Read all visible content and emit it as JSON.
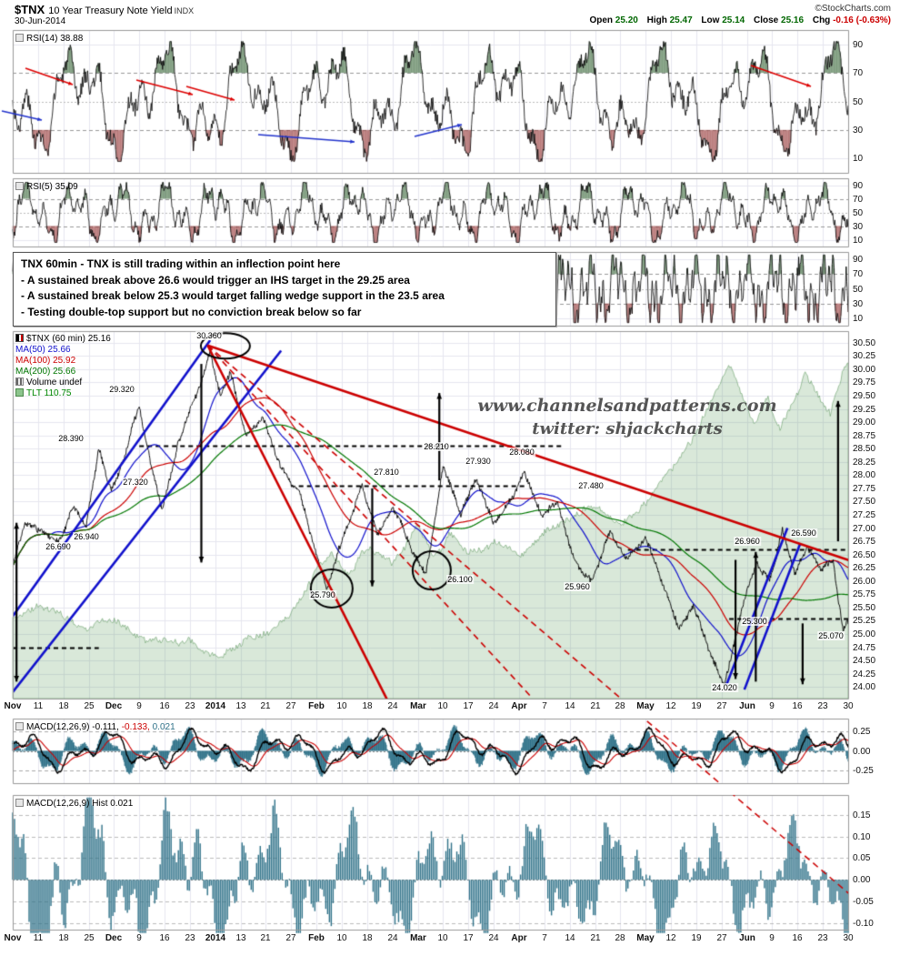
{
  "header": {
    "symbol": "$TNX",
    "title": "10 Year Treasury Note Yield",
    "index_tag": "INDX",
    "source": "©StockCharts.com",
    "date": "30-Jun-2014",
    "open_label": "Open",
    "open": "25.20",
    "high_label": "High",
    "high": "25.47",
    "low_label": "Low",
    "low": "25.14",
    "close_label": "Close",
    "close": "25.16",
    "chg_label": "Chg",
    "chg": "-0.16 (-0.63%)"
  },
  "annotation_box": {
    "title": "TNX 60min - TNX is still trading within an inflection point here",
    "line1": "- A sustained break above 26.6 would trigger an IHS target in the 29.25 area",
    "line2": "- A sustained break below 25.3 would target falling wedge support in the 23.5 area",
    "line3": "- Testing double-top support but no conviction break below so far"
  },
  "watermark": {
    "line1": "www.channelsandpatterns.com",
    "line2": "twitter: shjackcharts"
  },
  "panels": {
    "rsi14": {
      "legend": "RSI(14) 38.88",
      "ticks": [
        "90",
        "70",
        "50",
        "30",
        "10"
      ]
    },
    "rsi5": {
      "legend": "RSI(5) 35.09",
      "ticks": [
        "90",
        "70",
        "50",
        "30",
        "10"
      ]
    },
    "stoch": {
      "ticks": [
        "90",
        "70",
        "50",
        "30",
        "10"
      ]
    },
    "main": {
      "legend_price": "$TNX (60 min) 25.16",
      "legend_ma50": "MA(50) 25.66",
      "legend_ma100": "MA(100) 25.92",
      "legend_ma200": "MA(200) 25.66",
      "legend_volume": "Volume undef",
      "legend_tlt": "TLT 110.75",
      "ticks": [
        "30.50",
        "30.25",
        "30.00",
        "29.75",
        "29.50",
        "29.25",
        "29.00",
        "28.75",
        "28.50",
        "28.25",
        "28.00",
        "27.75",
        "27.50",
        "27.25",
        "27.00",
        "26.75",
        "26.50",
        "26.25",
        "26.00",
        "25.75",
        "25.50",
        "25.25",
        "25.00",
        "24.75",
        "24.50",
        "24.25",
        "24.00"
      ]
    },
    "macd": {
      "legend_name": "MACD(12,26,9)",
      "macd_value": "-0.111,",
      "signal_value": "-0.133,",
      "hist_value": "0.021",
      "ticks": [
        "0.25",
        "0.00",
        "-0.25"
      ]
    },
    "hist": {
      "legend": "MACD(12,26,9) Hist 0.021",
      "ticks": [
        "0.15",
        "0.10",
        "0.05",
        "0.00",
        "-0.05",
        "-0.10"
      ]
    }
  },
  "xaxis": {
    "labels": [
      "Nov",
      "11",
      "18",
      "25",
      "Dec",
      "9",
      "16",
      "23",
      "2014",
      "13",
      "21",
      "27",
      "Feb",
      "10",
      "18",
      "24",
      "Mar",
      "10",
      "17",
      "24",
      "Apr",
      "7",
      "14",
      "21",
      "28",
      "May",
      "12",
      "19",
      "27",
      "Jun",
      "9",
      "16",
      "23",
      "30"
    ]
  },
  "colors": {
    "ma50": "#1111cc",
    "ma100": "#cc0000",
    "ma200": "#007700",
    "tlt_fill": "rgba(80,150,80,0.22)",
    "tlt_line": "rgba(60,130,60,0.45)",
    "macd_hist": "#2e7188",
    "trend_red": "#cc0000",
    "trend_blue": "#1111cc",
    "annotation_black": "#000000"
  },
  "chart_data": {
    "type": "line",
    "title": "$TNX 10 Year Treasury Note Yield INDX, 60-minute bars, Nov 2013 - Jun 2014",
    "x_ticks": [
      "Nov",
      "11",
      "18",
      "25",
      "Dec",
      "9",
      "16",
      "23",
      "2014",
      "13",
      "21",
      "27",
      "Feb",
      "10",
      "18",
      "24",
      "Mar",
      "10",
      "17",
      "24",
      "Apr",
      "7",
      "14",
      "21",
      "28",
      "May",
      "12",
      "19",
      "27",
      "Jun",
      "9",
      "16",
      "23",
      "30"
    ],
    "price": {
      "ylim": [
        24.0,
        30.5
      ],
      "last": 25.16,
      "anchors": [
        [
          0,
          26.3
        ],
        [
          0.5,
          27.1
        ],
        [
          1.1,
          26.9
        ],
        [
          1.8,
          26.69
        ],
        [
          2.4,
          27.35
        ],
        [
          2.9,
          26.94
        ],
        [
          3.4,
          28.39
        ],
        [
          3.9,
          27.75
        ],
        [
          4.4,
          28.25
        ],
        [
          5.0,
          29.32
        ],
        [
          5.6,
          27.9
        ],
        [
          5.9,
          27.32
        ],
        [
          6.5,
          28.55
        ],
        [
          7.0,
          29.2
        ],
        [
          7.4,
          29.7
        ],
        [
          7.8,
          30.36
        ],
        [
          8.2,
          29.55
        ],
        [
          8.6,
          29.95
        ],
        [
          9.2,
          28.75
        ],
        [
          9.9,
          29.05
        ],
        [
          10.6,
          28.15
        ],
        [
          11.3,
          27.65
        ],
        [
          12.0,
          26.45
        ],
        [
          12.4,
          25.79
        ],
        [
          13.1,
          26.85
        ],
        [
          13.8,
          27.81
        ],
        [
          14.4,
          26.95
        ],
        [
          15.0,
          27.45
        ],
        [
          15.7,
          26.65
        ],
        [
          16.3,
          26.1
        ],
        [
          17.0,
          28.21
        ],
        [
          17.7,
          27.25
        ],
        [
          18.3,
          27.93
        ],
        [
          19.0,
          27.1
        ],
        [
          19.7,
          27.55
        ],
        [
          20.2,
          28.08
        ],
        [
          20.9,
          27.2
        ],
        [
          21.5,
          27.48
        ],
        [
          22.2,
          26.35
        ],
        [
          22.9,
          25.96
        ],
        [
          23.6,
          26.95
        ],
        [
          24.3,
          26.35
        ],
        [
          25.0,
          26.85
        ],
        [
          25.7,
          25.9
        ],
        [
          26.3,
          25.05
        ],
        [
          26.9,
          25.55
        ],
        [
          27.5,
          24.65
        ],
        [
          28.1,
          24.02
        ],
        [
          28.8,
          25.45
        ],
        [
          29.4,
          26.35
        ],
        [
          29.9,
          25.95
        ],
        [
          30.4,
          26.96
        ],
        [
          30.9,
          26.15
        ],
        [
          31.4,
          26.59
        ],
        [
          31.9,
          26.2
        ],
        [
          32.4,
          26.4
        ],
        [
          32.8,
          25.07
        ],
        [
          33,
          25.16
        ]
      ],
      "pivot_labels": [
        {
          "text": "30.360",
          "t": 7.75,
          "v": 30.64
        },
        {
          "text": "29.320",
          "t": 4.3,
          "v": 29.62
        },
        {
          "text": "28.390",
          "t": 2.3,
          "v": 28.7
        },
        {
          "text": "27.320",
          "t": 4.85,
          "v": 27.86
        },
        {
          "text": "26.940",
          "t": 2.9,
          "v": 26.84
        },
        {
          "text": "26.690",
          "t": 1.8,
          "v": 26.65
        },
        {
          "text": "25.790",
          "t": 12.25,
          "v": 25.74
        },
        {
          "text": "27.810",
          "t": 14.75,
          "v": 28.05
        },
        {
          "text": "28.210",
          "t": 16.75,
          "v": 28.54
        },
        {
          "text": "26.100",
          "t": 17.65,
          "v": 26.03
        },
        {
          "text": "27.930",
          "t": 18.4,
          "v": 28.27
        },
        {
          "text": "28.080",
          "t": 20.1,
          "v": 28.43
        },
        {
          "text": "27.480",
          "t": 22.85,
          "v": 27.8
        },
        {
          "text": "25.960",
          "t": 22.3,
          "v": 25.89
        },
        {
          "text": "26.960",
          "t": 29.0,
          "v": 26.76
        },
        {
          "text": "26.590",
          "t": 31.25,
          "v": 26.9
        },
        {
          "text": "25.300",
          "t": 29.3,
          "v": 25.24
        },
        {
          "text": "25.070",
          "t": 32.3,
          "v": 24.97
        },
        {
          "text": "24.020",
          "t": 28.1,
          "v": 23.99
        }
      ]
    },
    "moving_averages": [
      {
        "name": "MA(50)",
        "last": 25.66
      },
      {
        "name": "MA(100)",
        "last": 25.92
      },
      {
        "name": "MA(200)",
        "last": 25.66
      }
    ],
    "tlt_overlay": {
      "last": 110.75,
      "anchors": [
        [
          0,
          25.3
        ],
        [
          1,
          25.55
        ],
        [
          2,
          25.2
        ],
        [
          3,
          25.05
        ],
        [
          4,
          25.3
        ],
        [
          5,
          24.95
        ],
        [
          6,
          24.8
        ],
        [
          7,
          24.85
        ],
        [
          8,
          24.55
        ],
        [
          9,
          24.75
        ],
        [
          10,
          25.0
        ],
        [
          11,
          25.3
        ],
        [
          12,
          26.2
        ],
        [
          12.6,
          26.5
        ],
        [
          13.2,
          26.1
        ],
        [
          14,
          26.6
        ],
        [
          15,
          26.35
        ],
        [
          16,
          27.0
        ],
        [
          16.6,
          26.5
        ],
        [
          17.3,
          26.9
        ],
        [
          18,
          26.6
        ],
        [
          19,
          26.75
        ],
        [
          20,
          26.5
        ],
        [
          21,
          26.9
        ],
        [
          22,
          27.15
        ],
        [
          23,
          27.4
        ],
        [
          24,
          27.1
        ],
        [
          25,
          27.5
        ],
        [
          25.7,
          27.9
        ],
        [
          26.4,
          28.4
        ],
        [
          27.1,
          28.9
        ],
        [
          27.8,
          29.6
        ],
        [
          28.3,
          30.1
        ],
        [
          28.8,
          29.5
        ],
        [
          29.3,
          29.0
        ],
        [
          29.8,
          29.4
        ],
        [
          30.3,
          28.8
        ],
        [
          30.8,
          29.3
        ],
        [
          31.3,
          29.9
        ],
        [
          31.8,
          29.5
        ],
        [
          32.3,
          29.2
        ],
        [
          32.8,
          30.0
        ],
        [
          33,
          30.2
        ]
      ]
    },
    "rsi14": {
      "last": 38.88,
      "range": [
        0,
        100
      ],
      "guides": [
        70,
        50,
        30
      ]
    },
    "rsi5": {
      "last": 35.09,
      "range": [
        0,
        100
      ],
      "guides": [
        70,
        50,
        30
      ]
    },
    "macd": {
      "last_macd": -0.111,
      "last_signal": -0.133,
      "last_hist": 0.021,
      "ylim": [
        -0.4,
        0.4
      ]
    },
    "macd_hist": {
      "last": 0.021,
      "ylim": [
        -0.115,
        0.196
      ]
    },
    "support_resistance": [
      {
        "level": 28.55,
        "t1": 5.0,
        "t2": 21.8
      },
      {
        "level": 27.8,
        "t1": 11.3,
        "t2": 20.3
      },
      {
        "level": 26.6,
        "t1": 24.3,
        "t2": 33.1
      },
      {
        "level": 25.3,
        "t1": 28.3,
        "t2": 33.3
      },
      {
        "level": 24.75,
        "t1": -0.4,
        "t2": 3.4
      }
    ]
  }
}
